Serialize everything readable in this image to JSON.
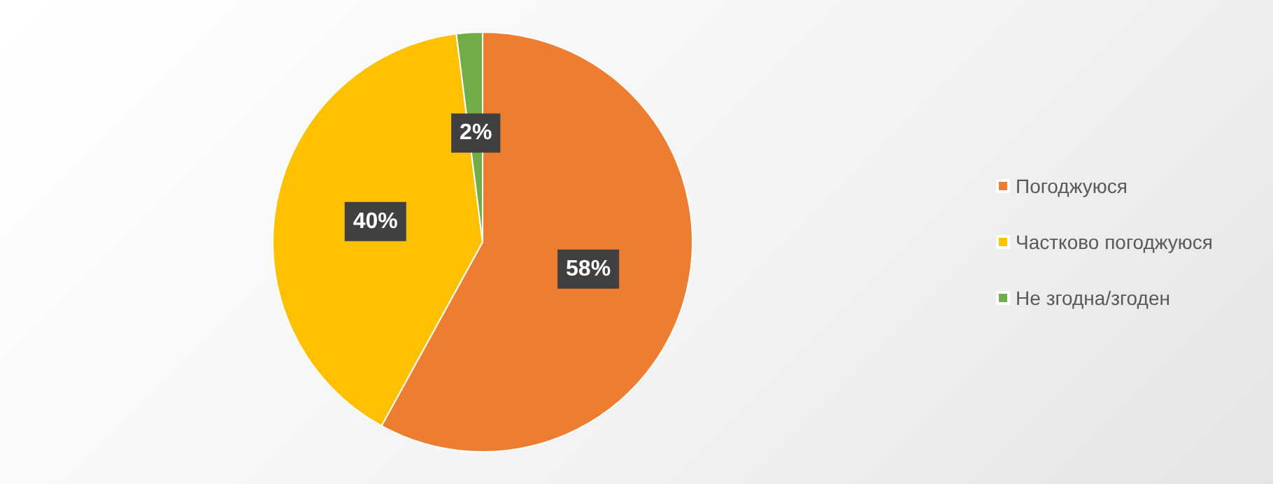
{
  "chart_data": {
    "type": "pie",
    "categories": [
      "Погоджуюся",
      "Частково погоджуюся",
      "Не згодна/згоден"
    ],
    "values": [
      58,
      40,
      2
    ],
    "colors": [
      "#ed7d31",
      "#ffc000",
      "#70ad47"
    ],
    "value_labels": [
      "58%",
      "40%",
      "2%"
    ],
    "legend": "right"
  }
}
